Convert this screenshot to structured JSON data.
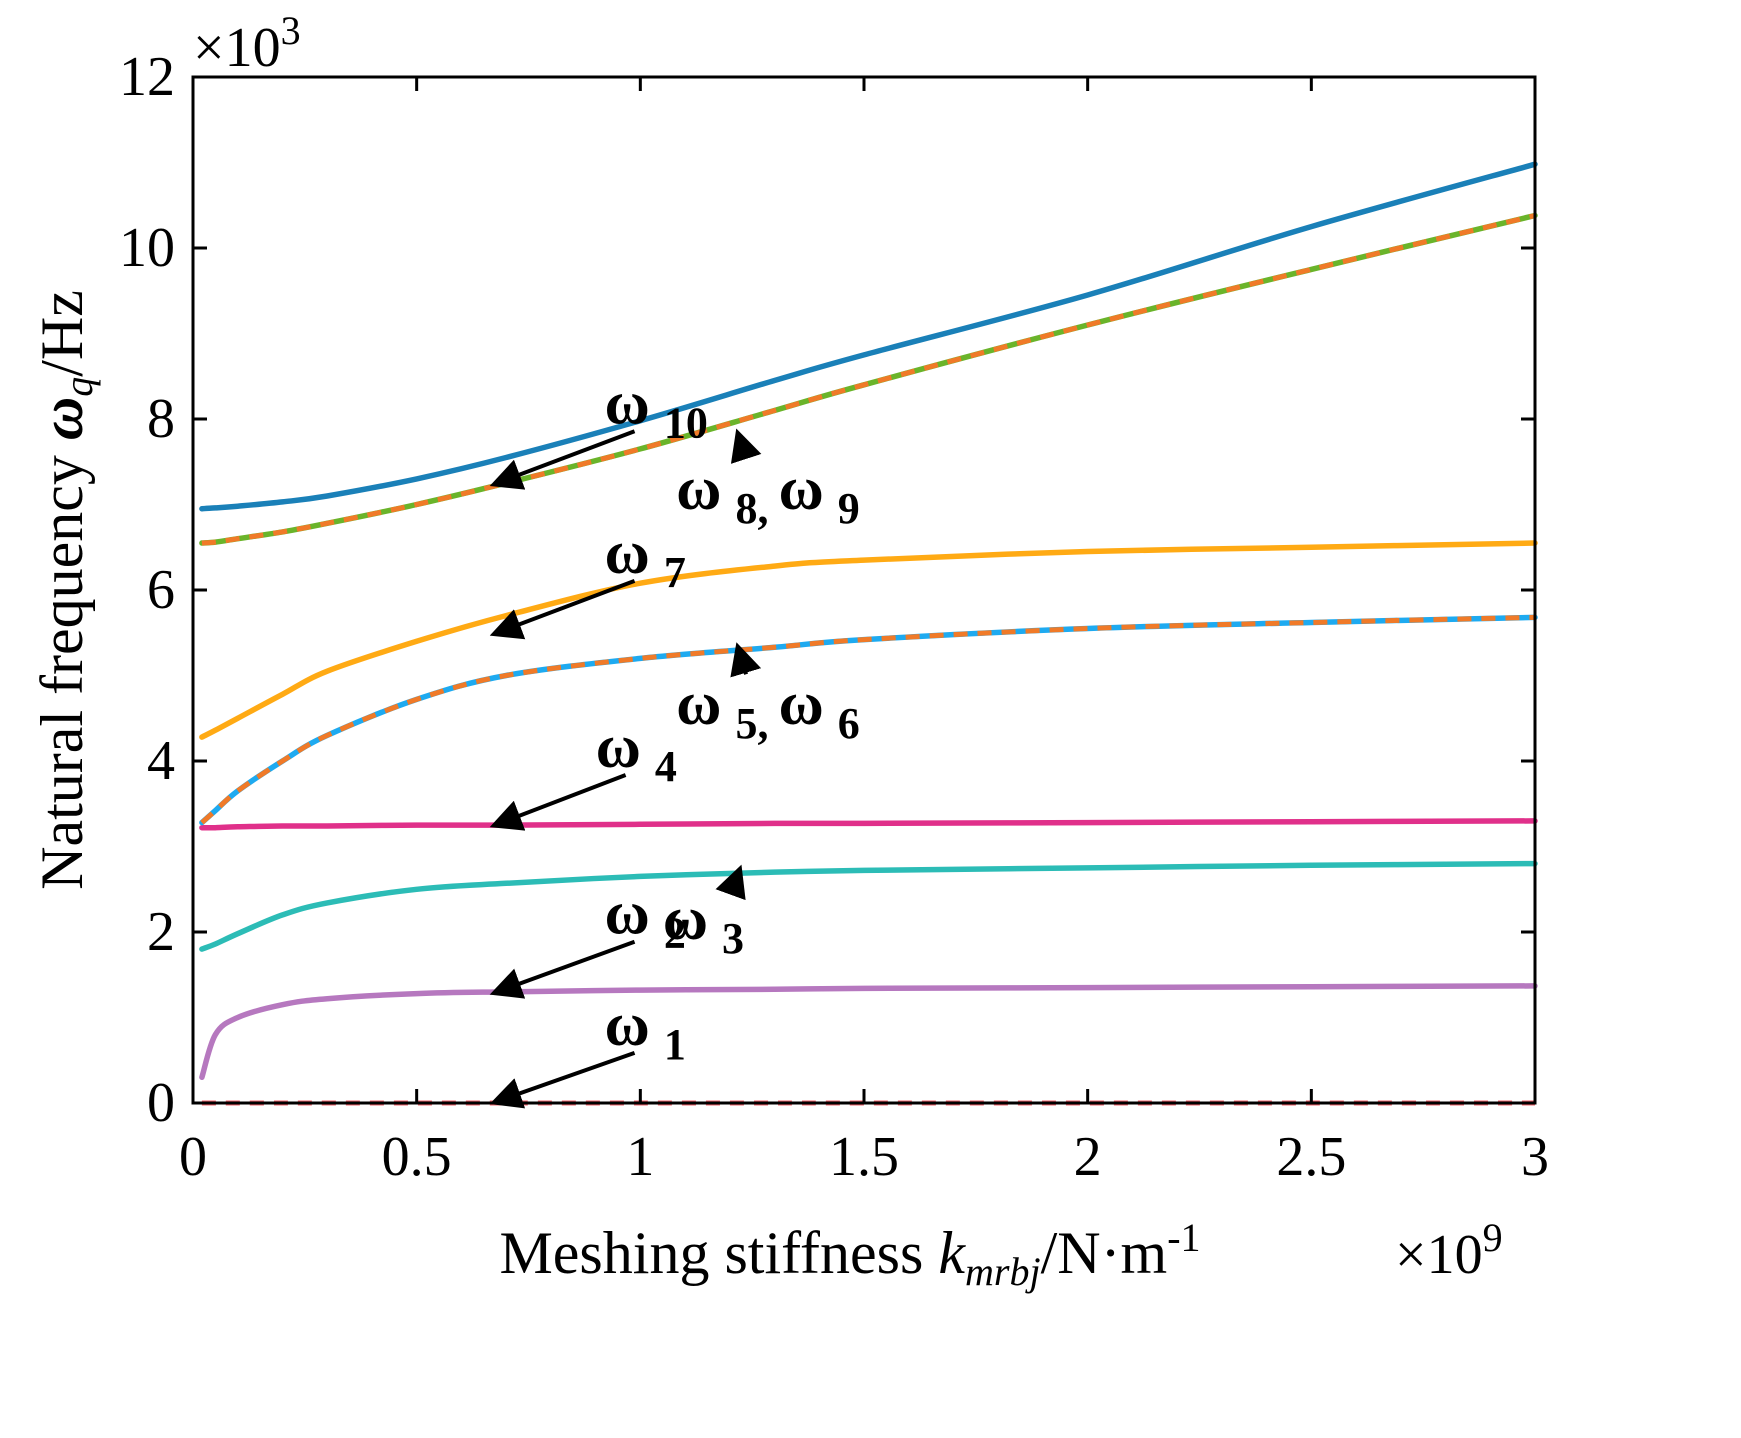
{
  "chart_data": {
    "type": "line",
    "xlabel": "Meshing stiffness k_mrbj/N·m^-1",
    "ylabel": "Natural frequency ω_q/Hz",
    "xlabel_parts": {
      "main": "Meshing stiffness ",
      "var": "k",
      "sub": "mrbj",
      "unit": "/N·m",
      "sup": "-1"
    },
    "ylabel_parts": {
      "main": "Natural frequency ",
      "var": "ω",
      "sub": "q",
      "unit": "/Hz"
    },
    "x_multiplier": {
      "base": "×10",
      "exp": "9"
    },
    "y_multiplier": {
      "base": "×10",
      "exp": "3"
    },
    "xlim": [
      0,
      3
    ],
    "ylim": [
      0,
      12
    ],
    "xticks": [
      "0",
      "0.5",
      "1",
      "1.5",
      "2",
      "2.5",
      "3"
    ],
    "yticks": [
      "0",
      "2",
      "4",
      "6",
      "8",
      "10",
      "12"
    ],
    "x": [
      0.02,
      0.05,
      0.1,
      0.2,
      0.3,
      0.5,
      0.7,
      1.0,
      1.3,
      1.5,
      2.0,
      2.5,
      3.0
    ],
    "series": [
      {
        "name": "ω1",
        "color": "#f0606a",
        "dash": true,
        "values": [
          0,
          0,
          0,
          0,
          0,
          0,
          0,
          0,
          0,
          0,
          0,
          0,
          0
        ]
      },
      {
        "name": "ω2",
        "color": "#b678bf",
        "values": [
          0.3,
          0.8,
          1.0,
          1.15,
          1.22,
          1.28,
          1.3,
          1.32,
          1.33,
          1.34,
          1.35,
          1.36,
          1.37
        ]
      },
      {
        "name": "ω3",
        "color": "#2cbcb6",
        "values": [
          1.8,
          1.86,
          1.98,
          2.2,
          2.34,
          2.5,
          2.57,
          2.65,
          2.7,
          2.72,
          2.75,
          2.78,
          2.8
        ]
      },
      {
        "name": "ω4",
        "color": "#e0308a",
        "values": [
          3.22,
          3.22,
          3.23,
          3.24,
          3.24,
          3.25,
          3.25,
          3.26,
          3.27,
          3.27,
          3.28,
          3.29,
          3.3
        ]
      },
      {
        "name": "ω5",
        "color": "#1eaaf0",
        "values": [
          3.28,
          3.42,
          3.65,
          4.0,
          4.3,
          4.72,
          5.0,
          5.2,
          5.33,
          5.42,
          5.55,
          5.62,
          5.68
        ]
      },
      {
        "name": "ω6",
        "color": "#f07a28",
        "dash": true,
        "values": [
          3.28,
          3.42,
          3.65,
          4.0,
          4.3,
          4.72,
          5.0,
          5.2,
          5.33,
          5.42,
          5.55,
          5.62,
          5.68
        ]
      },
      {
        "name": "ω7",
        "color": "#ffaa14",
        "values": [
          4.28,
          4.36,
          4.5,
          4.78,
          5.05,
          5.4,
          5.7,
          6.08,
          6.28,
          6.35,
          6.45,
          6.5,
          6.55
        ]
      },
      {
        "name": "ω8",
        "color": "#6ab42a",
        "values": [
          6.55,
          6.56,
          6.6,
          6.68,
          6.78,
          7.0,
          7.25,
          7.65,
          8.1,
          8.4,
          9.1,
          9.75,
          10.38
        ]
      },
      {
        "name": "ω9",
        "color": "#f07a28",
        "dash": true,
        "values": [
          6.55,
          6.56,
          6.6,
          6.68,
          6.78,
          7.0,
          7.25,
          7.65,
          8.1,
          8.4,
          9.1,
          9.75,
          10.38
        ]
      },
      {
        "name": "ω10",
        "color": "#1a80b8",
        "values": [
          6.95,
          6.96,
          6.98,
          7.03,
          7.1,
          7.3,
          7.55,
          7.98,
          8.45,
          8.75,
          9.45,
          10.25,
          10.98
        ]
      }
    ],
    "annotations": [
      {
        "id": "w10",
        "symbol": "ω",
        "sub": "10",
        "point": [
          0.68,
          7.25
        ],
        "text_at": [
          0.92,
          7.95
        ],
        "dir": "down"
      },
      {
        "id": "w89",
        "symbol": "ω",
        "sub": "8,",
        "symbol2": "ω",
        "sub2": "9",
        "point": [
          1.22,
          7.8
        ],
        "text_at": [
          1.08,
          6.95
        ],
        "dir": "up"
      },
      {
        "id": "w7",
        "symbol": "ω",
        "sub": "7",
        "point": [
          0.68,
          5.5
        ],
        "text_at": [
          0.92,
          6.2
        ],
        "dir": "down"
      },
      {
        "id": "w56",
        "symbol": "ω",
        "sub": "5,",
        "symbol2": "ω",
        "sub2": "6",
        "point": [
          1.22,
          5.3
        ],
        "text_at": [
          1.08,
          4.43
        ],
        "dir": "up"
      },
      {
        "id": "w4",
        "symbol": "ω",
        "sub": "4",
        "point": [
          0.68,
          3.26
        ],
        "text_at": [
          0.9,
          3.93
        ],
        "dir": "down"
      },
      {
        "id": "w3",
        "symbol": "ω",
        "sub": "3",
        "point": [
          1.22,
          2.7
        ],
        "text_at": [
          1.05,
          1.92
        ],
        "dir": "up"
      },
      {
        "id": "w2",
        "symbol": "ω",
        "sub": "2",
        "point": [
          0.68,
          1.3
        ],
        "text_at": [
          0.92,
          1.98
        ],
        "dir": "down"
      },
      {
        "id": "w1",
        "symbol": "ω",
        "sub": "1",
        "point": [
          0.68,
          0.02
        ],
        "text_at": [
          0.92,
          0.68
        ],
        "dir": "down"
      }
    ]
  }
}
